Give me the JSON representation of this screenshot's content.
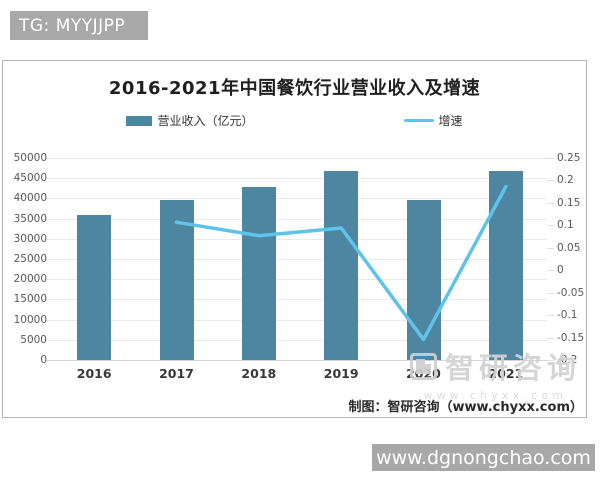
{
  "page": {
    "tg_badge": "TG: MYYJJPP",
    "site_badge": "www.dgnongchao.com"
  },
  "chart": {
    "title": "2016-2021年中国餐饮行业营业收入及增速",
    "credit": "制图：智研咨询（www.chyxx.com）",
    "watermark": {
      "brand": "智研咨询",
      "url": "www.chyxx.com"
    },
    "legend": [
      {
        "label": "营业收入（亿元）",
        "marker": "bar",
        "color": "#4e86a2"
      },
      {
        "label": "增速",
        "marker": "line",
        "color": "#5ec3e8"
      }
    ],
    "colors": {
      "bar": "#4e86a2",
      "line": "#5ec3e8",
      "grid": "#e9e9e9",
      "axis_text": "#595959",
      "badge_bg": "#a8a8a8",
      "watermark": "#d2d2d2"
    }
  },
  "chart_data": {
    "type": "bar",
    "title": "2016-2021年中国餐饮行业营业收入及增速",
    "categories": [
      "2016",
      "2017",
      "2018",
      "2019",
      "2020",
      "2021"
    ],
    "series": [
      {
        "name": "营业收入（亿元）",
        "type": "bar",
        "axis": "left",
        "color": "#4e86a2",
        "values": [
          35799,
          39644,
          42716,
          46721,
          39527,
          46895
        ]
      },
      {
        "name": "增速",
        "type": "line",
        "axis": "right",
        "color": "#5ec3e8",
        "values": [
          null,
          0.107,
          0.077,
          0.094,
          -0.154,
          0.186
        ]
      }
    ],
    "y_axis_left": {
      "range": [
        0,
        50000
      ],
      "step": 5000,
      "ticks": [
        "50000",
        "45000",
        "40000",
        "35000",
        "30000",
        "25000",
        "20000",
        "15000",
        "10000",
        "5000",
        "0"
      ]
    },
    "y_axis_right": {
      "range": [
        -0.2,
        0.25
      ],
      "step": 0.05,
      "ticks": [
        "0.25",
        "0.2",
        "0.15",
        "0.1",
        "0.05",
        "0",
        "-0.05",
        "-0.1",
        "-0.15",
        "-0.2"
      ]
    },
    "grid": true,
    "legend_position": "top"
  }
}
